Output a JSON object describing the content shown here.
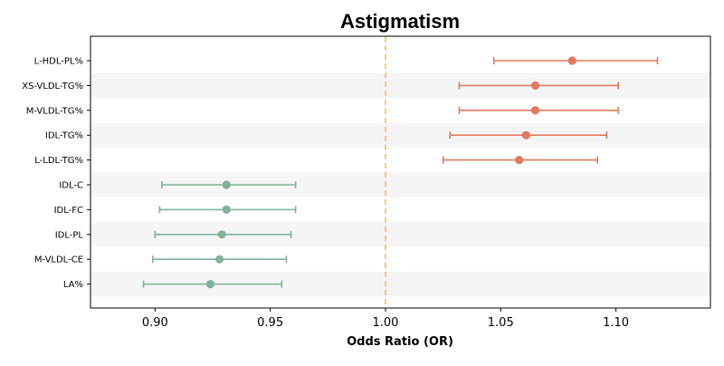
{
  "chart_data": {
    "type": "forest",
    "title": "Astigmatism",
    "xlabel": "Odds Ratio (OR)",
    "ylabel": "",
    "xlim": [
      0.872,
      1.141
    ],
    "xticks": [
      0.9,
      0.95,
      1.0,
      1.05,
      1.1
    ],
    "xtick_labels": [
      "0.90",
      "0.95",
      "1.00",
      "1.05",
      "1.10"
    ],
    "reference_line": 1.0,
    "reference_color": "#f5c27a",
    "categories": [
      "L-HDL-PL%",
      "XS-VLDL-TG%",
      "M-VLDL-TG%",
      "IDL-TG%",
      "L-LDL-TG%",
      "IDL-C",
      "IDL-FC",
      "IDL-PL",
      "M-VLDL-CE",
      "LA%"
    ],
    "or": [
      1.081,
      1.065,
      1.065,
      1.061,
      1.058,
      0.931,
      0.931,
      0.929,
      0.928,
      0.924
    ],
    "ci_low": [
      1.047,
      1.032,
      1.032,
      1.028,
      1.025,
      0.903,
      0.902,
      0.9,
      0.899,
      0.895
    ],
    "ci_high": [
      1.118,
      1.101,
      1.101,
      1.096,
      1.092,
      0.961,
      0.961,
      0.959,
      0.957,
      0.955
    ],
    "colors": {
      "increase": "#e07a5f",
      "decrease": "#81b29a",
      "band": "#f5f5f5"
    },
    "grid": false
  }
}
